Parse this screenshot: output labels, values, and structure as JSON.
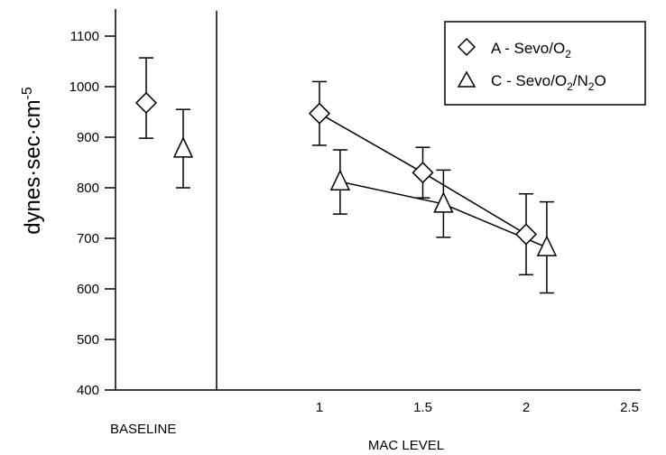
{
  "chart_data": {
    "type": "scatter",
    "ylabel": "dynes·sec·cm",
    "ylabel_sup": "-5",
    "xlabel": "MAC LEVEL",
    "baseline_label": "BASELINE",
    "ylim": [
      400,
      1150
    ],
    "yticks": [
      "1100",
      "1000",
      "900",
      "800",
      "700",
      "600",
      "500",
      "400"
    ],
    "xlim": [
      0.5,
      2.5
    ],
    "xticks": [
      "1",
      "1.5",
      "2",
      "2.5"
    ],
    "grid": false,
    "legend_placement": "top-right",
    "series": [
      {
        "name": "A - Sevo/O",
        "name_sub": "2",
        "marker": "diamond",
        "baseline": {
          "mean": 968,
          "lower": 898,
          "upper": 1057
        },
        "points": [
          {
            "x": 1.0,
            "mean": 947,
            "lower": 884,
            "upper": 1010
          },
          {
            "x": 1.5,
            "mean": 830,
            "lower": 780,
            "upper": 880
          },
          {
            "x": 2.0,
            "mean": 708,
            "lower": 628,
            "upper": 788
          }
        ]
      },
      {
        "name": "C - Sevo/O",
        "name_sub": "2",
        "name_mid": "/N",
        "name_sub2": "2",
        "name_end": "O",
        "marker": "triangle",
        "baseline": {
          "mean": 877,
          "lower": 800,
          "upper": 955
        },
        "points": [
          {
            "x": 1.1,
            "mean": 812,
            "lower": 748,
            "upper": 875
          },
          {
            "x": 1.6,
            "mean": 768,
            "lower": 702,
            "upper": 835
          },
          {
            "x": 2.1,
            "mean": 682,
            "lower": 592,
            "upper": 772
          }
        ]
      }
    ]
  }
}
